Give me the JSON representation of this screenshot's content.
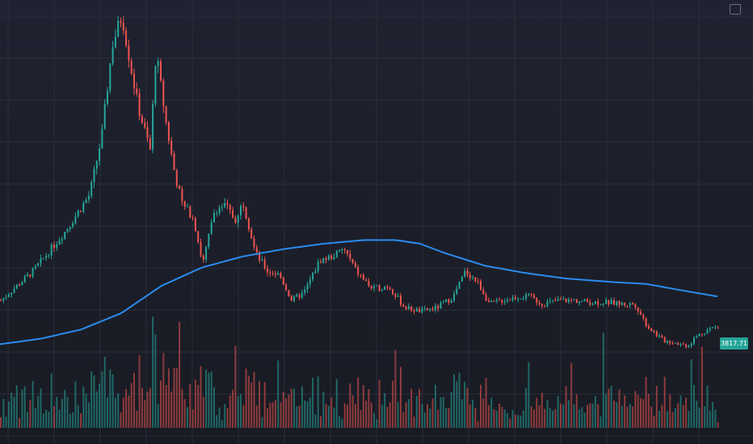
{
  "chart_data": {
    "type": "candlestick",
    "title": "",
    "xlabel": "",
    "ylabel": "",
    "grid": true,
    "colors": {
      "up": "#26a69a",
      "down": "#ef5350",
      "ma": "#2b8cf0",
      "grid": "#2a2e3a",
      "background": "#1b1e27"
    },
    "ylim": [
      3000,
      12500
    ],
    "last_price": "3817.71",
    "x_tick_labels": [
      "",
      "",
      "",
      "",
      "",
      "",
      "",
      "",
      "",
      "",
      "",
      "",
      "",
      "",
      "",
      ""
    ],
    "y_tick_labels": [
      "",
      "",
      "",
      "",
      "",
      "",
      "",
      ""
    ],
    "anchors": [
      [
        0,
        4500
      ],
      [
        40,
        5300
      ],
      [
        80,
        6400
      ],
      [
        110,
        7400
      ],
      [
        125,
        9000
      ],
      [
        138,
        11500
      ],
      [
        150,
        12300
      ],
      [
        160,
        11000
      ],
      [
        170,
        9800
      ],
      [
        185,
        8600
      ],
      [
        192,
        11300
      ],
      [
        205,
        9300
      ],
      [
        215,
        8000
      ],
      [
        225,
        7100
      ],
      [
        238,
        6800
      ],
      [
        250,
        5500
      ],
      [
        265,
        7000
      ],
      [
        278,
        7100
      ],
      [
        290,
        6700
      ],
      [
        300,
        7200
      ],
      [
        315,
        5800
      ],
      [
        330,
        5300
      ],
      [
        345,
        5200
      ],
      [
        360,
        4500
      ],
      [
        375,
        4700
      ],
      [
        395,
        5600
      ],
      [
        410,
        5700
      ],
      [
        425,
        5900
      ],
      [
        440,
        5300
      ],
      [
        460,
        4800
      ],
      [
        480,
        4900
      ],
      [
        500,
        4300
      ],
      [
        520,
        4200
      ],
      [
        540,
        4300
      ],
      [
        560,
        4600
      ],
      [
        575,
        5300
      ],
      [
        590,
        5000
      ],
      [
        605,
        4400
      ],
      [
        620,
        4500
      ],
      [
        640,
        4600
      ],
      [
        655,
        4600
      ],
      [
        670,
        4400
      ],
      [
        690,
        4500
      ],
      [
        710,
        4500
      ],
      [
        730,
        4450
      ],
      [
        750,
        4450
      ],
      [
        770,
        4400
      ],
      [
        785,
        4400
      ],
      [
        800,
        3800
      ],
      [
        820,
        3400
      ],
      [
        835,
        3350
      ],
      [
        850,
        3250
      ],
      [
        860,
        3500
      ],
      [
        875,
        3700
      ],
      [
        890,
        3817.71
      ]
    ],
    "moving_average": [
      [
        0,
        3300
      ],
      [
        50,
        3450
      ],
      [
        100,
        3700
      ],
      [
        150,
        4150
      ],
      [
        200,
        4900
      ],
      [
        250,
        5400
      ],
      [
        300,
        5700
      ],
      [
        350,
        5900
      ],
      [
        400,
        6050
      ],
      [
        450,
        6150
      ],
      [
        490,
        6150
      ],
      [
        520,
        6050
      ],
      [
        550,
        5800
      ],
      [
        600,
        5450
      ],
      [
        650,
        5250
      ],
      [
        700,
        5100
      ],
      [
        760,
        5000
      ],
      [
        800,
        4950
      ],
      [
        850,
        4750
      ],
      [
        890,
        4600
      ]
    ]
  }
}
